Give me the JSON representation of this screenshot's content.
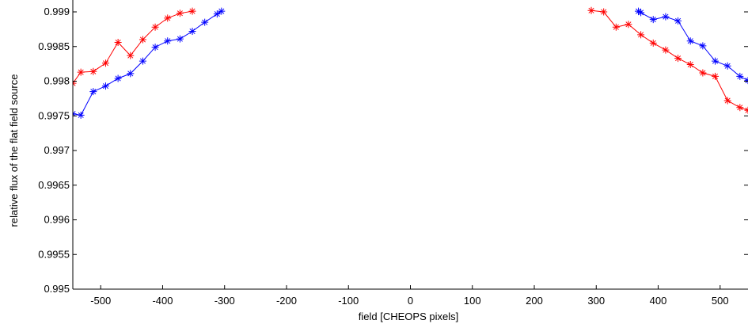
{
  "chart_data": {
    "type": "line",
    "title": "",
    "xlabel": "field [CHEOPS pixels]",
    "ylabel": "relative flux of the flat field source",
    "xlim": [
      -545,
      545
    ],
    "ylim": [
      0.995,
      0.999
    ],
    "xticks": [
      -500,
      -400,
      -300,
      -200,
      -100,
      0,
      100,
      200,
      300,
      400,
      500
    ],
    "yticks": [
      0.995,
      0.9955,
      0.996,
      0.9965,
      0.997,
      0.9975,
      0.998,
      0.9985,
      0.999
    ],
    "ytick_labels": [
      "0.995",
      "0.9955",
      "0.996",
      "0.9965",
      "0.997",
      "0.9975",
      "0.998",
      "0.9985",
      "0.999"
    ],
    "xtick_labels": [
      "-500",
      "-400",
      "-300",
      "-200",
      "-100",
      "0",
      "100",
      "200",
      "300",
      "400",
      "500"
    ],
    "grid": false,
    "marker": "asterisk",
    "series": [
      {
        "color": "#ff0000",
        "segments": [
          [
            [
              -545,
              0.99797
            ],
            [
              -532,
              0.99813
            ],
            [
              -512,
              0.99814
            ],
            [
              -492,
              0.99826
            ],
            [
              -472,
              0.99856
            ],
            [
              -452,
              0.99837
            ],
            [
              -432,
              0.9986
            ],
            [
              -412,
              0.99878
            ],
            [
              -392,
              0.99891
            ],
            [
              -372,
              0.99898
            ],
            [
              -352,
              0.99901
            ]
          ],
          [
            [
              292,
              0.99902
            ],
            [
              312,
              0.999
            ],
            [
              332,
              0.99878
            ],
            [
              352,
              0.99882
            ],
            [
              372,
              0.99867
            ],
            [
              392,
              0.99855
            ],
            [
              412,
              0.99845
            ],
            [
              432,
              0.99833
            ],
            [
              452,
              0.99824
            ],
            [
              472,
              0.99812
            ],
            [
              492,
              0.99807
            ],
            [
              512,
              0.99772
            ],
            [
              532,
              0.99762
            ],
            [
              545,
              0.99758
            ]
          ]
        ]
      },
      {
        "color": "#0000ff",
        "segments": [
          [
            [
              -545,
              0.99753
            ],
            [
              -532,
              0.99751
            ],
            [
              -512,
              0.99785
            ],
            [
              -492,
              0.99793
            ],
            [
              -472,
              0.99804
            ],
            [
              -452,
              0.99811
            ],
            [
              -432,
              0.99829
            ],
            [
              -412,
              0.99849
            ],
            [
              -392,
              0.99858
            ],
            [
              -372,
              0.99861
            ],
            [
              -352,
              0.99872
            ],
            [
              -332,
              0.99885
            ],
            [
              -312,
              0.99897
            ],
            [
              -305,
              0.99901
            ]
          ],
          [
            [
              368,
              0.99901
            ],
            [
              372,
              0.99899
            ],
            [
              392,
              0.99889
            ],
            [
              412,
              0.99893
            ],
            [
              432,
              0.99887
            ],
            [
              452,
              0.99858
            ],
            [
              472,
              0.99851
            ],
            [
              492,
              0.99829
            ],
            [
              512,
              0.99822
            ],
            [
              532,
              0.99807
            ],
            [
              545,
              0.99801
            ]
          ]
        ]
      }
    ]
  }
}
